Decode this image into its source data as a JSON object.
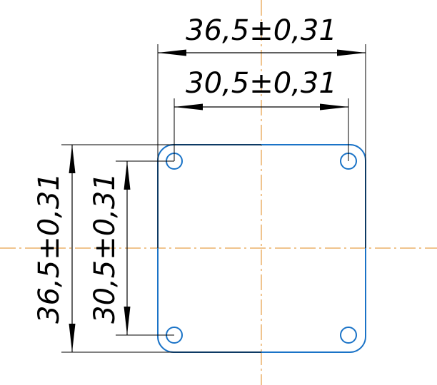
{
  "colors": {
    "part_outline": "#1a73c7",
    "center_lines": "#e08a1e",
    "dimensions": "#000000",
    "background": "#ffffff"
  },
  "dimensions": {
    "outer_width": "36,5±0,31",
    "hole_spacing_width": "30,5±0,31",
    "outer_height": "36,5±0,31",
    "hole_spacing_height": "30,5±0,31"
  }
}
